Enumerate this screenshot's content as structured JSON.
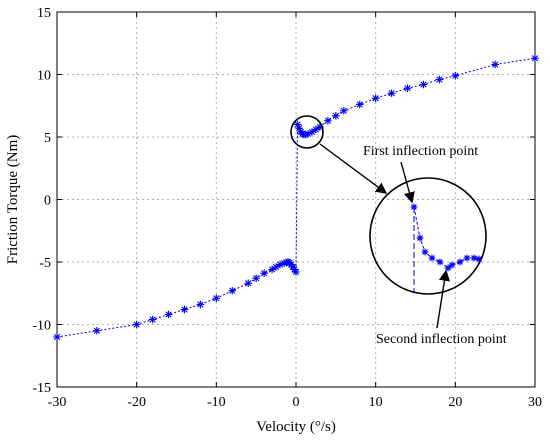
{
  "chart_data": {
    "type": "scatter",
    "title": "",
    "xlabel": "Velocity (°/s)",
    "ylabel": "Friction Torque (Nm)",
    "xlim": [
      -30,
      30
    ],
    "ylim": [
      -15,
      15
    ],
    "xticks": [
      -30,
      -20,
      -10,
      0,
      10,
      20,
      30
    ],
    "yticks": [
      -15,
      -10,
      -5,
      0,
      5,
      10,
      15
    ],
    "grid": true,
    "legend": "none",
    "series_color": "#0000ee",
    "marker": "asterisk",
    "line_style": "dotted",
    "series": [
      {
        "x": [
          -30,
          -25,
          -20,
          -18,
          -16,
          -14,
          -12,
          -10,
          -8,
          -6,
          -5,
          -4,
          -3,
          -2.5,
          -2,
          -1.5,
          -1.2,
          -1,
          -0.8,
          -0.6,
          -0.4,
          -0.2,
          0,
          0.2,
          0.4,
          0.6,
          0.8,
          1,
          1.2,
          1.5,
          2,
          2.5,
          3,
          4,
          5,
          6,
          8,
          10,
          12,
          14,
          16,
          18,
          20,
          25,
          30
        ],
        "y": [
          -11.0,
          -10.5,
          -10.0,
          -9.6,
          -9.2,
          -8.8,
          -8.4,
          -7.9,
          -7.3,
          -6.7,
          -6.3,
          -5.9,
          -5.6,
          -5.4,
          -5.2,
          -5.1,
          -5.05,
          -5.0,
          -5.05,
          -5.2,
          -5.4,
          -5.6,
          -5.8,
          6.0,
          5.7,
          5.4,
          5.25,
          5.2,
          5.2,
          5.25,
          5.4,
          5.6,
          5.8,
          6.3,
          6.7,
          7.1,
          7.6,
          8.1,
          8.5,
          8.9,
          9.2,
          9.6,
          9.9,
          10.8,
          11.3
        ]
      }
    ],
    "annotations": {
      "first": "First inflection point",
      "second": "Second inflection point"
    }
  }
}
